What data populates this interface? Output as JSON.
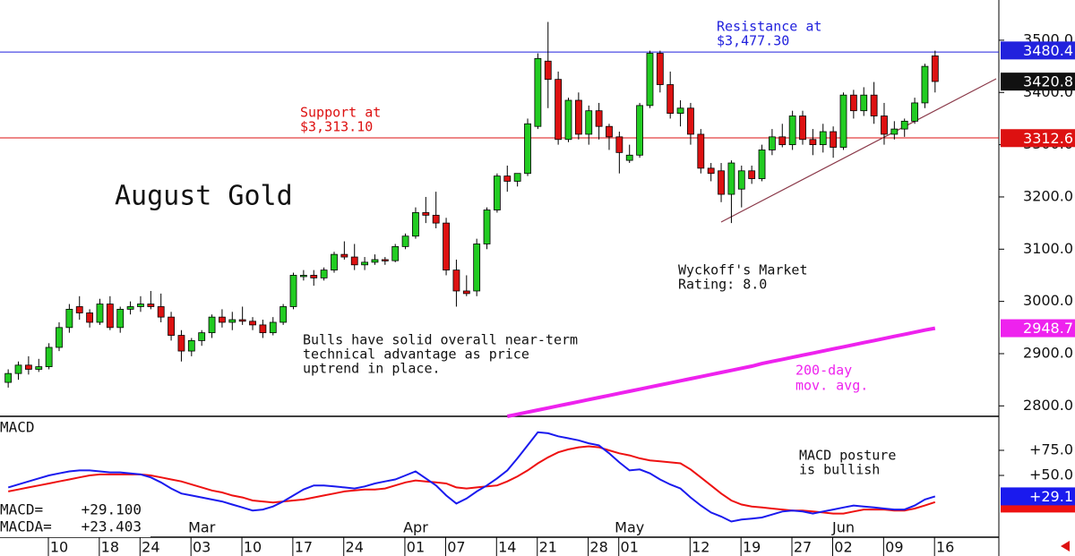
{
  "chart_data": [
    {
      "type": "candlestick",
      "title": "August Gold",
      "open": [
        2845,
        2862,
        2878,
        2870,
        2875,
        2912,
        2950,
        2990,
        2978,
        2960,
        2995,
        2950,
        2985,
        2990,
        2995,
        2990,
        2970,
        2935,
        2905,
        2925,
        2940,
        2970,
        2960,
        2965,
        2962,
        2955,
        2940,
        2960,
        2990,
        3050,
        3050,
        3045,
        3060,
        3090,
        3085,
        3070,
        3075,
        3080,
        3078,
        3105,
        3125,
        3170,
        3165,
        3150,
        3060,
        3020,
        3020,
        3110,
        3175,
        3240,
        3230,
        3245,
        3335,
        3460,
        3425,
        3310,
        3385,
        3320,
        3365,
        3335,
        3315,
        3270,
        3280,
        3375,
        3475,
        3415,
        3360,
        3370,
        3320,
        3255,
        3250,
        3205,
        3215,
        3250,
        3235,
        3290,
        3315,
        3300,
        3355,
        3310,
        3300,
        3325,
        3295,
        3395,
        3365,
        3395,
        3355,
        3320,
        3330,
        3345,
        3380,
        3470
      ],
      "high": [
        2870,
        2885,
        2895,
        2890,
        2920,
        2960,
        2995,
        3010,
        2985,
        3005,
        3010,
        2990,
        3000,
        3010,
        3020,
        3015,
        2980,
        2945,
        2930,
        2945,
        2975,
        2985,
        2980,
        2990,
        2970,
        2965,
        2970,
        2995,
        3055,
        3060,
        3060,
        3065,
        3095,
        3115,
        3110,
        3085,
        3090,
        3085,
        3110,
        3130,
        3180,
        3200,
        3210,
        3160,
        3080,
        3050,
        3120,
        3180,
        3245,
        3260,
        3245,
        3350,
        3475,
        3535,
        3440,
        3390,
        3400,
        3375,
        3380,
        3340,
        3325,
        3300,
        3380,
        3480,
        3480,
        3440,
        3385,
        3380,
        3330,
        3265,
        3265,
        3270,
        3260,
        3260,
        3300,
        3330,
        3340,
        3365,
        3365,
        3330,
        3340,
        3335,
        3400,
        3405,
        3410,
        3420,
        3380,
        3345,
        3350,
        3390,
        3455,
        3480
      ],
      "low": [
        2835,
        2850,
        2860,
        2865,
        2870,
        2905,
        2940,
        2965,
        2950,
        2955,
        2945,
        2940,
        2975,
        2980,
        2985,
        2960,
        2925,
        2885,
        2895,
        2915,
        2930,
        2950,
        2945,
        2955,
        2945,
        2930,
        2935,
        2955,
        2985,
        3040,
        3030,
        3040,
        3055,
        3080,
        3060,
        3060,
        3070,
        3070,
        3075,
        3100,
        3120,
        3150,
        3140,
        3050,
        2990,
        3010,
        3010,
        3100,
        3170,
        3210,
        3220,
        3240,
        3330,
        3370,
        3300,
        3305,
        3310,
        3300,
        3310,
        3290,
        3245,
        3265,
        3275,
        3370,
        3400,
        3350,
        3335,
        3300,
        3245,
        3230,
        3190,
        3150,
        3180,
        3225,
        3230,
        3280,
        3295,
        3290,
        3300,
        3280,
        3285,
        3275,
        3290,
        3350,
        3355,
        3340,
        3300,
        3310,
        3315,
        3340,
        3370,
        3400
      ],
      "close": [
        2862,
        2878,
        2870,
        2875,
        2912,
        2950,
        2985,
        2978,
        2960,
        2995,
        2950,
        2985,
        2990,
        2995,
        2990,
        2970,
        2935,
        2905,
        2925,
        2940,
        2970,
        2960,
        2965,
        2962,
        2955,
        2940,
        2960,
        2990,
        3050,
        3050,
        3045,
        3060,
        3090,
        3085,
        3070,
        3075,
        3080,
        3078,
        3105,
        3125,
        3170,
        3165,
        3150,
        3060,
        3020,
        3015,
        3110,
        3175,
        3240,
        3230,
        3245,
        3340,
        3465,
        3425,
        3310,
        3385,
        3320,
        3365,
        3335,
        3315,
        3285,
        3280,
        3375,
        3475,
        3415,
        3360,
        3370,
        3320,
        3255,
        3245,
        3205,
        3265,
        3250,
        3235,
        3290,
        3315,
        3300,
        3355,
        3310,
        3300,
        3325,
        3295,
        3395,
        3365,
        3395,
        3355,
        3320,
        3330,
        3345,
        3380,
        3450,
        3421
      ],
      "up_color": "#22cc22",
      "down_color": "#dd1111",
      "moving_average": {
        "name_lines": [
          "200-day",
          "mov. avg."
        ],
        "color": "#ee22ee",
        "values": [
          null,
          null,
          null,
          null,
          null,
          null,
          null,
          null,
          null,
          null,
          null,
          null,
          null,
          null,
          null,
          null,
          null,
          null,
          null,
          null,
          null,
          null,
          null,
          null,
          null,
          null,
          null,
          null,
          null,
          null,
          null,
          null,
          null,
          null,
          null,
          null,
          null,
          null,
          null,
          null,
          null,
          null,
          null,
          null,
          null,
          null,
          null,
          null,
          null,
          2780,
          2784,
          2788,
          2792,
          2796,
          2800,
          2804,
          2808,
          2812,
          2816,
          2820,
          2824,
          2828,
          2832,
          2836,
          2840,
          2844,
          2848,
          2852,
          2856,
          2860,
          2864,
          2868,
          2872,
          2876,
          2881,
          2885,
          2889,
          2893,
          2897,
          2901,
          2905,
          2909,
          2913,
          2917,
          2921,
          2925,
          2929,
          2933,
          2937,
          2941,
          2945,
          2948.7
        ]
      },
      "levels": [
        {
          "value": 3477.3,
          "color": "#2222dd",
          "lines": [
            "Resistance at",
            "$3,477.30"
          ]
        },
        {
          "value": 3313.1,
          "color": "#dd1111",
          "lines": [
            "Support at",
            "$3,313.10"
          ]
        }
      ],
      "price_tags": [
        {
          "value": 3480.4,
          "color": "#2222dd"
        },
        {
          "value": 3420.8,
          "color": "#111111"
        },
        {
          "value": 3312.6,
          "color": "#dd1111"
        },
        {
          "value": 2948.7,
          "color": "#ee22ee"
        }
      ],
      "annotations": [
        {
          "lines": [
            "Bulls have solid overall near-term",
            "technical advantage as price",
            "uptrend in place."
          ]
        },
        {
          "lines": [
            "Wyckoff's Market",
            "Rating: 8.0"
          ]
        }
      ],
      "ylim": [
        2780,
        3577
      ],
      "yticks": [
        {
          "value": 3500,
          "label": "3500.0"
        },
        {
          "value": 3400,
          "label": "3400.0"
        },
        {
          "value": 3300,
          "label": "3300.0"
        },
        {
          "value": 3200,
          "label": "3200.0"
        },
        {
          "value": 3100,
          "label": "3100.0"
        },
        {
          "value": 3000,
          "label": "3000.0"
        },
        {
          "value": 2900,
          "label": "2900.0"
        },
        {
          "value": 2800,
          "label": "2800.0"
        }
      ]
    },
    {
      "type": "line",
      "title": "MACD",
      "series": [
        {
          "name": "MACD=",
          "value_label": "+29.100",
          "color": "#1a1aee",
          "values": [
            38,
            41,
            44,
            47,
            50,
            52,
            54,
            55,
            55,
            54,
            53,
            53,
            52,
            51,
            48,
            43,
            37,
            32,
            30,
            28,
            26,
            24,
            21,
            18,
            15,
            16,
            19,
            24,
            30,
            36,
            40,
            40,
            39,
            38,
            37,
            39,
            42,
            44,
            46,
            50,
            54,
            47,
            40,
            30,
            22,
            27,
            34,
            40,
            47,
            55,
            67,
            80,
            93,
            92,
            89,
            87,
            85,
            82,
            80,
            72,
            63,
            55,
            56,
            52,
            46,
            41,
            37,
            28,
            20,
            13,
            9,
            4,
            6,
            7,
            8,
            11,
            14,
            15,
            14,
            12,
            14,
            16,
            18,
            20,
            19,
            18,
            17,
            16,
            16,
            20,
            26,
            29.1
          ]
        },
        {
          "name": "MACDA=",
          "value_label": "+23.403",
          "color": "#ee1111",
          "values": [
            34,
            36,
            38,
            40,
            42,
            44,
            46,
            48,
            50,
            51,
            51,
            51,
            51,
            51,
            50,
            48,
            46,
            44,
            41,
            38,
            35,
            33,
            30,
            28,
            25,
            24,
            23,
            24,
            25,
            26,
            28,
            30,
            32,
            34,
            35,
            36,
            36,
            37,
            40,
            43,
            45,
            44,
            43,
            42,
            38,
            37,
            38,
            39,
            40,
            44,
            49,
            55,
            62,
            68,
            73,
            76,
            78,
            79,
            78,
            75,
            72,
            70,
            67,
            65,
            64,
            63,
            62,
            56,
            48,
            40,
            32,
            25,
            21,
            19,
            18,
            17,
            16,
            15,
            15,
            14,
            13,
            12,
            12,
            14,
            16,
            16,
            16,
            15,
            15,
            17,
            20,
            23.403
          ]
        }
      ],
      "tag": {
        "value": 29.1,
        "label": "+29.1",
        "color": "#1a1aee"
      },
      "annotation": [
        "MACD posture",
        "is bullish"
      ],
      "ylim": [
        -11.6,
        108.9
      ],
      "yticks": [
        {
          "value": 75,
          "label": "+75.0"
        },
        {
          "value": 50,
          "label": "+50.0"
        }
      ],
      "xticks": [
        {
          "value": 5,
          "label": "10"
        },
        {
          "value": 10,
          "label": "18"
        },
        {
          "value": 14,
          "label": "24"
        },
        {
          "value": 19,
          "label": "03"
        },
        {
          "value": 24,
          "label": "10"
        },
        {
          "value": 29,
          "label": "17"
        },
        {
          "value": 34,
          "label": "24"
        },
        {
          "value": 40,
          "label": "01"
        },
        {
          "value": 44,
          "label": "07"
        },
        {
          "value": 49,
          "label": "14"
        },
        {
          "value": 53,
          "label": "21"
        },
        {
          "value": 58,
          "label": "28"
        },
        {
          "value": 61,
          "label": "01"
        },
        {
          "value": 68,
          "label": "12"
        },
        {
          "value": 73,
          "label": "19"
        },
        {
          "value": 78,
          "label": "27"
        },
        {
          "value": 82,
          "label": "02"
        },
        {
          "value": 87,
          "label": "09"
        },
        {
          "value": 92,
          "label": "16"
        }
      ],
      "months": [
        {
          "value": 19,
          "label": "Mar"
        },
        {
          "value": 40,
          "label": "Apr"
        },
        {
          "value": 61,
          "label": "May"
        },
        {
          "value": 82,
          "label": "Jun"
        }
      ]
    }
  ]
}
